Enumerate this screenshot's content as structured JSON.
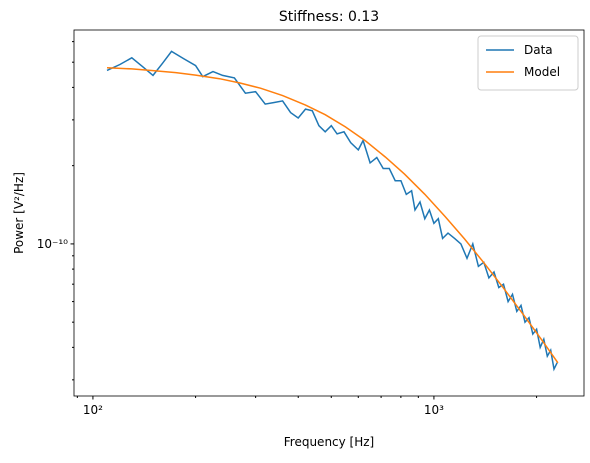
{
  "chart_data": {
    "type": "line",
    "title": "Stiffness: 0.13",
    "x_label": "Frequency [Hz]",
    "y_label": "Power [V²/Hz]",
    "log_x": true,
    "log_y": true,
    "legend": "upper right",
    "xlim": [
      88,
      2755
    ],
    "ylim": [
      2.6e-11,
      6.65e-10
    ],
    "xticks": [
      {
        "value": 100,
        "label": "10²"
      },
      {
        "value": 1000,
        "label": "10³"
      }
    ],
    "yticks": [
      {
        "value": 1e-10,
        "label": "10⁻¹⁰"
      }
    ],
    "xminorticks": [
      90,
      200,
      300,
      400,
      500,
      600,
      700,
      800,
      900,
      2000
    ],
    "yminorticks": [
      3e-11,
      4e-11,
      5e-11,
      6e-11,
      7e-11,
      8e-11,
      9e-11,
      2e-10,
      3e-10,
      4e-10,
      5e-10,
      6e-10
    ],
    "series": [
      {
        "name": "Data",
        "color": "#1f77b4",
        "x": [
          110,
          120,
          130,
          140,
          150,
          160,
          170,
          185,
          200,
          210,
          225,
          240,
          260,
          280,
          300,
          320,
          340,
          360,
          380,
          400,
          420,
          440,
          460,
          480,
          500,
          520,
          545,
          570,
          600,
          620,
          650,
          680,
          710,
          740,
          770,
          800,
          830,
          860,
          880,
          910,
          940,
          970,
          1000,
          1030,
          1060,
          1100,
          1150,
          1200,
          1250,
          1300,
          1350,
          1400,
          1450,
          1500,
          1550,
          1600,
          1650,
          1700,
          1750,
          1800,
          1850,
          1900,
          1950,
          2000,
          2050,
          2100,
          2150,
          2200,
          2250,
          2300
        ],
        "values": [
          4.65e-10,
          4.9e-10,
          5.2e-10,
          4.8e-10,
          4.45e-10,
          4.95e-10,
          5.5e-10,
          5.15e-10,
          4.85e-10,
          4.4e-10,
          4.6e-10,
          4.45e-10,
          4.35e-10,
          3.8e-10,
          3.85e-10,
          3.45e-10,
          3.5e-10,
          3.55e-10,
          3.2e-10,
          3.05e-10,
          3.3e-10,
          3.25e-10,
          2.85e-10,
          2.7e-10,
          2.85e-10,
          2.65e-10,
          2.7e-10,
          2.45e-10,
          2.3e-10,
          2.5e-10,
          2.05e-10,
          2.15e-10,
          1.95e-10,
          1.95e-10,
          1.75e-10,
          1.75e-10,
          1.55e-10,
          1.6e-10,
          1.35e-10,
          1.45e-10,
          1.25e-10,
          1.35e-10,
          1.2e-10,
          1.25e-10,
          1.05e-10,
          1.1e-10,
          1.05e-10,
          1e-10,
          8.8e-11,
          1e-10,
          8.2e-11,
          8.5e-11,
          7.4e-11,
          7.8e-11,
          6.8e-11,
          7e-11,
          6e-11,
          6.4e-11,
          5.5e-11,
          5.8e-11,
          5e-11,
          5.2e-11,
          4.5e-11,
          4.7e-11,
          4e-11,
          4.3e-11,
          3.7e-11,
          3.9e-11,
          3.3e-11,
          3.5e-11
        ]
      },
      {
        "name": "Model",
        "color": "#ff7f0e",
        "x": [
          110,
          130,
          150,
          175,
          200,
          235,
          270,
          310,
          360,
          420,
          480,
          550,
          630,
          720,
          820,
          940,
          1080,
          1230,
          1400,
          1600,
          1830,
          2080,
          2310
        ],
        "values": [
          4.76e-10,
          4.71e-10,
          4.64e-10,
          4.56e-10,
          4.46e-10,
          4.32e-10,
          4.16e-10,
          3.97e-10,
          3.72e-10,
          3.42e-10,
          3.14e-10,
          2.82e-10,
          2.49e-10,
          2.16e-10,
          1.855e-10,
          1.552e-10,
          1.273e-10,
          1.044e-10,
          8.47e-11,
          6.76e-11,
          5.34e-11,
          4.24e-11,
          3.49e-11
        ]
      }
    ]
  }
}
